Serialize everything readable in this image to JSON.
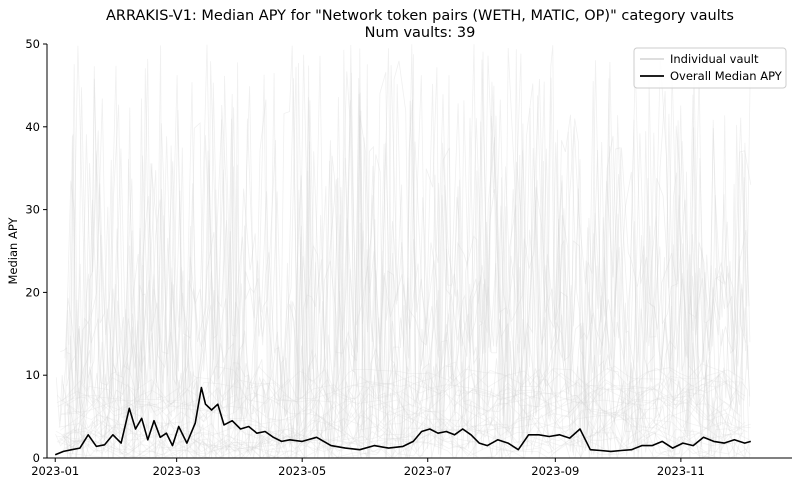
{
  "chart_data": {
    "type": "line",
    "title": "ARRAKIS-V1: Median APY for \"Network token pairs (WETH, MATIC, OP)\" category vaults",
    "subtitle": "Num vaults: 39",
    "ylabel": "Median APY",
    "xlabel": "",
    "ylim": [
      0,
      50
    ],
    "xlim": [
      "2022-12-28",
      "2023-12-25"
    ],
    "y_ticks": [
      0,
      10,
      20,
      30,
      40,
      50
    ],
    "x_ticks": [
      "2023-01",
      "2023-03",
      "2023-05",
      "2023-07",
      "2023-09",
      "2023-11"
    ],
    "grid": false,
    "legend": {
      "position": "top-right",
      "entries": [
        {
          "label": "Individual vault",
          "color": "#d3d3d3"
        },
        {
          "label": "Overall Median APY",
          "color": "#000000"
        }
      ]
    },
    "series": [
      {
        "name": "Overall Median APY",
        "color": "#000000",
        "x": [
          "2023-01-01",
          "2023-01-05",
          "2023-01-09",
          "2023-01-13",
          "2023-01-17",
          "2023-01-21",
          "2023-01-25",
          "2023-01-29",
          "2023-02-02",
          "2023-02-06",
          "2023-02-09",
          "2023-02-12",
          "2023-02-15",
          "2023-02-18",
          "2023-02-21",
          "2023-02-24",
          "2023-02-27",
          "2023-03-02",
          "2023-03-06",
          "2023-03-10",
          "2023-03-13",
          "2023-03-15",
          "2023-03-18",
          "2023-03-21",
          "2023-03-24",
          "2023-03-28",
          "2023-04-01",
          "2023-04-05",
          "2023-04-09",
          "2023-04-13",
          "2023-04-17",
          "2023-04-21",
          "2023-04-25",
          "2023-05-01",
          "2023-05-08",
          "2023-05-15",
          "2023-05-22",
          "2023-05-29",
          "2023-06-05",
          "2023-06-12",
          "2023-06-19",
          "2023-06-24",
          "2023-06-28",
          "2023-07-02",
          "2023-07-06",
          "2023-07-10",
          "2023-07-14",
          "2023-07-18",
          "2023-07-22",
          "2023-07-26",
          "2023-07-30",
          "2023-08-04",
          "2023-08-09",
          "2023-08-14",
          "2023-08-19",
          "2023-08-24",
          "2023-08-29",
          "2023-09-03",
          "2023-09-08",
          "2023-09-13",
          "2023-09-18",
          "2023-09-23",
          "2023-09-28",
          "2023-10-03",
          "2023-10-08",
          "2023-10-13",
          "2023-10-18",
          "2023-10-23",
          "2023-10-28",
          "2023-11-02",
          "2023-11-07",
          "2023-11-12",
          "2023-11-17",
          "2023-11-22",
          "2023-11-27",
          "2023-12-02",
          "2023-12-05"
        ],
        "y": [
          0.4,
          0.8,
          1.0,
          1.2,
          2.8,
          1.4,
          1.6,
          2.8,
          1.8,
          6.0,
          3.5,
          4.8,
          2.2,
          4.5,
          2.5,
          3.0,
          1.5,
          3.8,
          1.8,
          4.2,
          8.5,
          6.5,
          5.8,
          6.5,
          4.0,
          4.5,
          3.5,
          3.8,
          3.0,
          3.2,
          2.5,
          2.0,
          2.2,
          2.0,
          2.5,
          1.5,
          1.2,
          1.0,
          1.5,
          1.2,
          1.4,
          2.0,
          3.2,
          3.5,
          3.0,
          3.2,
          2.8,
          3.5,
          2.8,
          1.8,
          1.5,
          2.2,
          1.8,
          1.0,
          2.8,
          2.8,
          2.6,
          2.8,
          2.4,
          3.5,
          1.0,
          0.9,
          0.8,
          0.9,
          1.0,
          1.5,
          1.5,
          2.0,
          1.2,
          1.8,
          1.5,
          2.5,
          2.0,
          1.8,
          2.2,
          1.8,
          2.0
        ]
      }
    ]
  }
}
